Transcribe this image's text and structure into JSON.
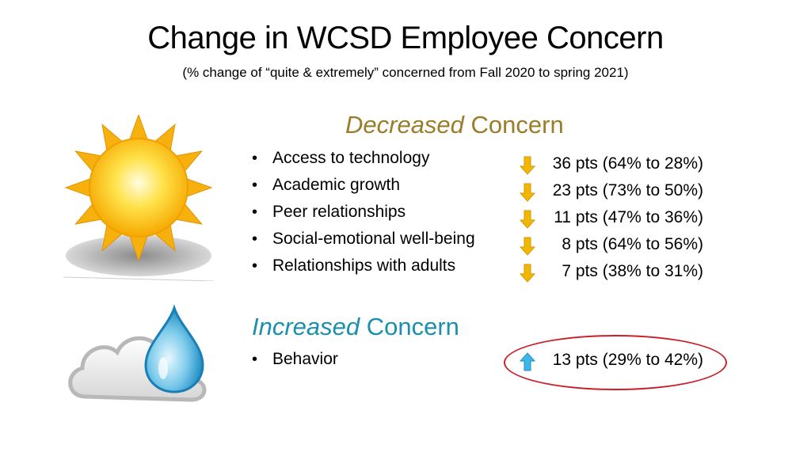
{
  "title": "Change in WCSD Employee Concern",
  "subtitle": "(% change of “quite & extremely” concerned from Fall 2020 to spring 2021)",
  "decreased": {
    "heading_emph": "Decreased",
    "heading_rest": " Concern",
    "items": [
      {
        "label": "Access to technology",
        "change": "36 pts (64% to 28%)"
      },
      {
        "label": "Academic growth",
        "change": "23 pts (73% to 50%)"
      },
      {
        "label": "Peer relationships",
        "change": "11 pts (47% to 36%)"
      },
      {
        "label": "Social-emotional well-being",
        "change": "8 pts (64% to 56%)"
      },
      {
        "label": "Relationships with adults",
        "change": "7 pts (38% to 31%)"
      }
    ],
    "arrow_icon": "down-arrow-icon",
    "arrow_color": "#f2b705"
  },
  "increased": {
    "heading_emph": "Increased",
    "heading_rest": " Concern",
    "items": [
      {
        "label": "Behavior",
        "change": "13 pts (29% to 42%)"
      }
    ],
    "arrow_icon": "up-arrow-icon",
    "arrow_color": "#3fb6e8"
  },
  "colors": {
    "decreased_heading": "#9a7c2a",
    "increased_heading": "#1a8fb0",
    "highlight_oval": "#c8202a"
  },
  "icons": [
    "sun-icon",
    "cloud-raindrop-icon"
  ]
}
